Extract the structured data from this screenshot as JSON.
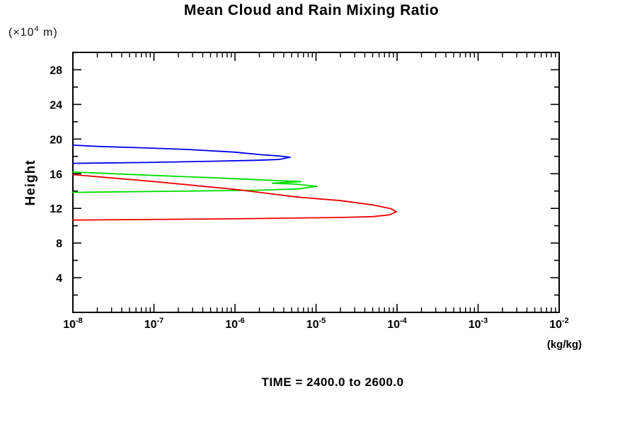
{
  "title": "Mean Cloud and Rain Mixing Ratio",
  "y_axis_unit": {
    "prefix": "(×10",
    "exponent": "4",
    "suffix": " m)"
  },
  "y_axis_label": "Height",
  "x_axis_unit": "(kg/kg)",
  "footer": "TIME = 2400.0 to 2600.0",
  "chart_data": {
    "type": "line",
    "title": "Mean Cloud and Rain Mixing Ratio",
    "xlabel": "(kg/kg)",
    "ylabel": "Height (x10^4 m)",
    "x_scale": "log",
    "xlim": [
      1e-08,
      0.01
    ],
    "ylim": [
      0,
      30
    ],
    "x_major_tick_exponents": [
      -8,
      -7,
      -6,
      -5,
      -4,
      -3,
      -2
    ],
    "x_minor_ticks": "logarithmic 2-9 within each decade, drawn on top and bottom axes",
    "y_major_ticks": [
      4,
      8,
      12,
      16,
      20,
      24,
      28
    ],
    "y_minor_tick_step": 2,
    "grid": false,
    "legend": "none",
    "annotation": "TIME = 2400.0 to 2600.0",
    "axis_color": "#000000",
    "series": [
      {
        "name": "blue-profile",
        "color": "#0000ee",
        "points": [
          [
            1e-08,
            19.3
          ],
          [
            2e-08,
            19.15
          ],
          [
            7e-08,
            19.0
          ],
          [
            2.6e-07,
            18.8
          ],
          [
            9.6e-07,
            18.5
          ],
          [
            2.1e-06,
            18.2
          ],
          [
            3.5e-06,
            18.05
          ],
          [
            4.8e-06,
            17.9
          ],
          [
            3.5e-06,
            17.65
          ],
          [
            1.8e-06,
            17.55
          ],
          [
            6e-07,
            17.45
          ],
          [
            8e-08,
            17.3
          ],
          [
            1e-08,
            17.2
          ]
        ]
      },
      {
        "name": "green-profile",
        "color": "#00dd00",
        "points": [
          [
            1e-08,
            16.2
          ],
          [
            1e-07,
            15.8
          ],
          [
            5e-07,
            15.55
          ],
          [
            1.5e-06,
            15.35
          ],
          [
            3.5e-06,
            15.2
          ],
          [
            6.5e-06,
            15.1
          ],
          [
            2.9e-06,
            14.9
          ],
          [
            5.5e-06,
            14.8
          ],
          [
            1.03e-05,
            14.55
          ],
          [
            6e-06,
            14.25
          ],
          [
            2e-06,
            14.1
          ],
          [
            3e-07,
            14.0
          ],
          [
            1e-08,
            13.85
          ]
        ]
      },
      {
        "name": "red-profile",
        "color": "#ee0000",
        "points": [
          [
            1e-08,
            15.9
          ],
          [
            1e-07,
            15.1
          ],
          [
            1e-06,
            14.2
          ],
          [
            6e-06,
            13.3
          ],
          [
            2e-05,
            12.9
          ],
          [
            5e-05,
            12.4
          ],
          [
            8.5e-05,
            11.95
          ],
          [
            9.8e-05,
            11.6
          ],
          [
            8e-05,
            11.25
          ],
          [
            5e-05,
            11.05
          ],
          [
            2e-05,
            10.95
          ],
          [
            1e-06,
            10.8
          ],
          [
            1e-08,
            10.65
          ]
        ]
      }
    ]
  }
}
